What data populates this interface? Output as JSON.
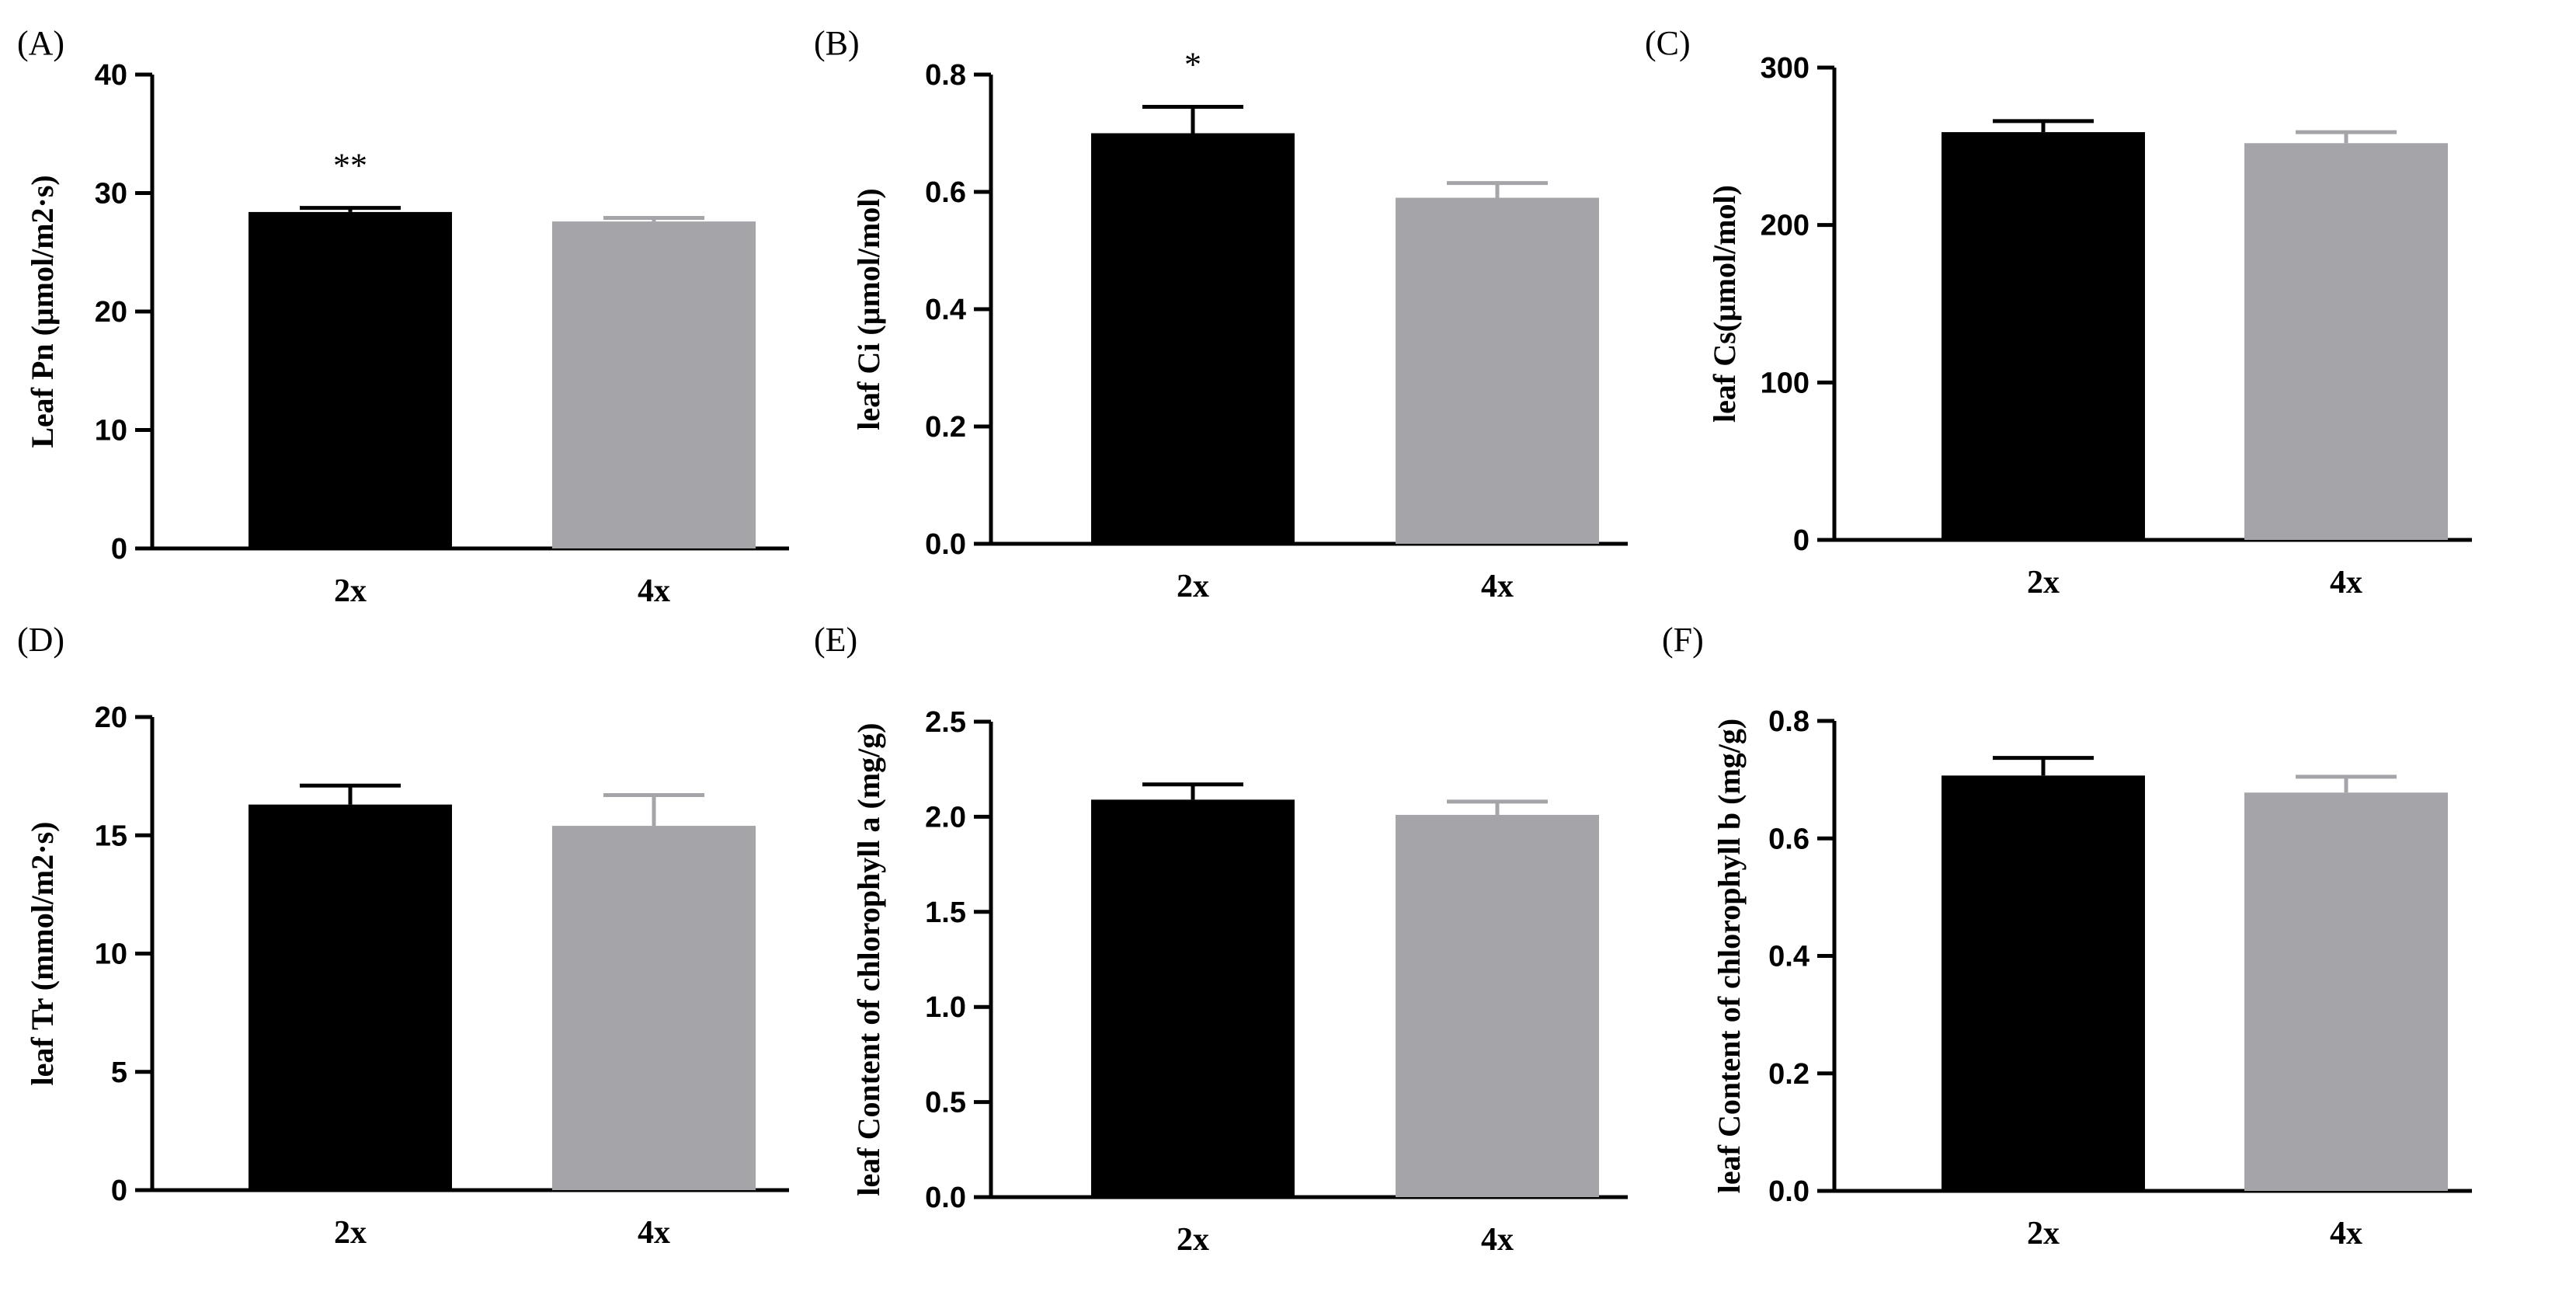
{
  "colors": {
    "bar_2x": "#000000",
    "bar_4x": "#a5a4a9",
    "axis": "#000000"
  },
  "chart_data": [
    {
      "type": "bar",
      "panel": "(A)",
      "categories": [
        "2x",
        "4x"
      ],
      "values": [
        28.4,
        27.6
      ],
      "errors": [
        0.35,
        0.3
      ],
      "significance": [
        "**",
        ""
      ],
      "ylabel": "Leaf Pn (μmol/m2·s)",
      "ylim": [
        0,
        40
      ],
      "yticks": [
        "0",
        "10",
        "20",
        "30",
        "40"
      ]
    },
    {
      "type": "bar",
      "panel": "(B)",
      "categories": [
        "2x",
        "4x"
      ],
      "values": [
        0.7,
        0.59
      ],
      "errors": [
        0.045,
        0.025
      ],
      "significance": [
        "*",
        ""
      ],
      "ylabel": "leaf Ci  (μmol/mol)",
      "ylim": [
        0,
        0.8
      ],
      "yticks": [
        "0.0",
        "0.2",
        "0.4",
        "0.6",
        "0.8"
      ]
    },
    {
      "type": "bar",
      "panel": "(C)",
      "categories": [
        "2x",
        "4x"
      ],
      "values": [
        259,
        252
      ],
      "errors": [
        7,
        7
      ],
      "significance": [
        "",
        ""
      ],
      "ylabel": "leaf Cs(μmol/mol)",
      "ylim": [
        0,
        300
      ],
      "yticks": [
        "0",
        "100",
        "200",
        "300"
      ]
    },
    {
      "type": "bar",
      "panel": "(D)",
      "categories": [
        "2x",
        "4x"
      ],
      "values": [
        16.3,
        15.4
      ],
      "errors": [
        0.8,
        1.3
      ],
      "significance": [
        "",
        ""
      ],
      "ylabel": "leaf Tr (mmol/m2·s)",
      "ylim": [
        0,
        20
      ],
      "yticks": [
        "0",
        "5",
        "10",
        "15",
        "20"
      ]
    },
    {
      "type": "bar",
      "panel": "(E)",
      "categories": [
        "2x",
        "4x"
      ],
      "values": [
        2.09,
        2.01
      ],
      "errors": [
        0.08,
        0.07
      ],
      "significance": [
        "",
        ""
      ],
      "ylabel": "leaf Content of chlorophyll a (mg/g)",
      "ylim": [
        0,
        2.5
      ],
      "yticks": [
        "0.0",
        "0.5",
        "1.0",
        "1.5",
        "2.0",
        "2.5"
      ]
    },
    {
      "type": "bar",
      "panel": "(F)",
      "categories": [
        "2x",
        "4x"
      ],
      "values": [
        0.707,
        0.678
      ],
      "errors": [
        0.03,
        0.027
      ],
      "significance": [
        "",
        ""
      ],
      "ylabel": "leaf Content of chlorophyll b (mg/g)",
      "ylim": [
        0,
        0.8
      ],
      "yticks": [
        "0.0",
        "0.2",
        "0.4",
        "0.6",
        "0.8"
      ]
    }
  ]
}
